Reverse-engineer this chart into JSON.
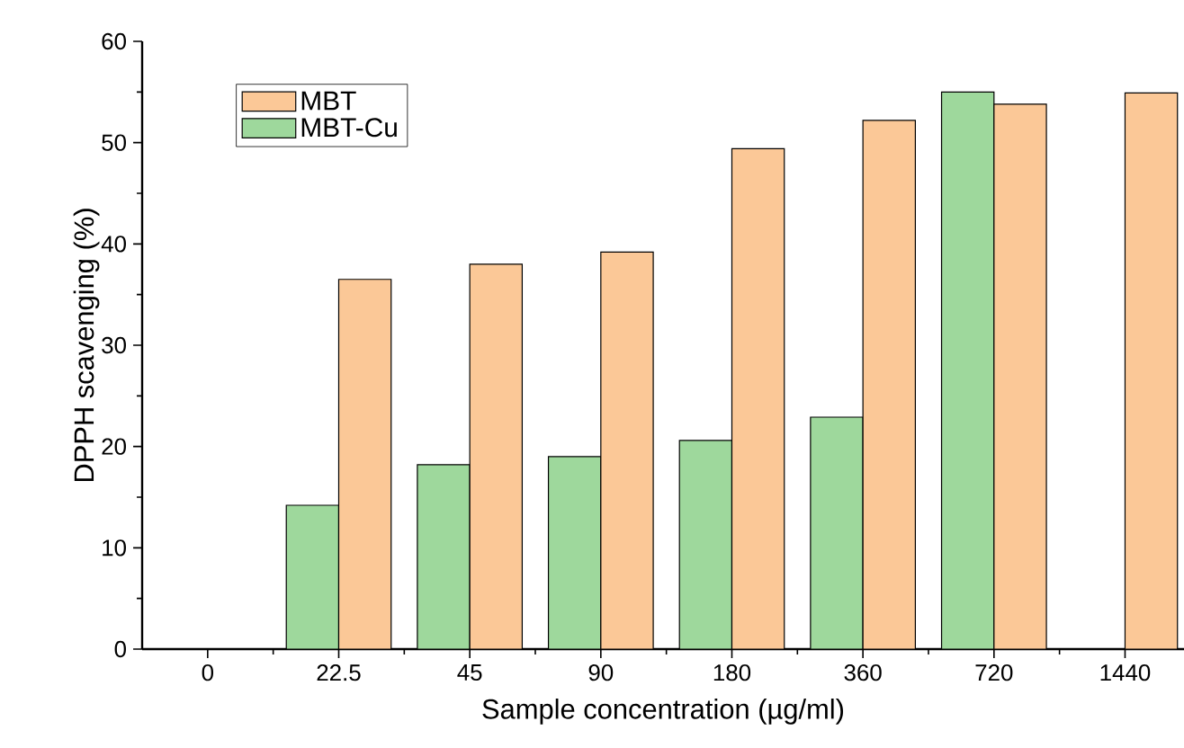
{
  "chart_data": {
    "type": "bar",
    "xlabel": "Sample concentration (µg/ml)",
    "ylabel": "DPPH scavenging (%)",
    "categories": [
      "0",
      "22.5",
      "45",
      "90",
      "180",
      "360",
      "720",
      "1440"
    ],
    "series": [
      {
        "name": "MBT-Cu",
        "color": "#9ed89c",
        "values": [
          null,
          14.2,
          18.2,
          19.0,
          20.6,
          22.9,
          55.0,
          null
        ]
      },
      {
        "name": "MBT",
        "color": "#fbc897",
        "values": [
          null,
          36.5,
          38.0,
          39.2,
          49.4,
          52.2,
          53.8,
          54.9
        ]
      }
    ],
    "ylim": [
      0,
      60
    ],
    "yticks": [
      0,
      10,
      20,
      30,
      40,
      50,
      60
    ],
    "grid": false,
    "legend": "top left"
  }
}
